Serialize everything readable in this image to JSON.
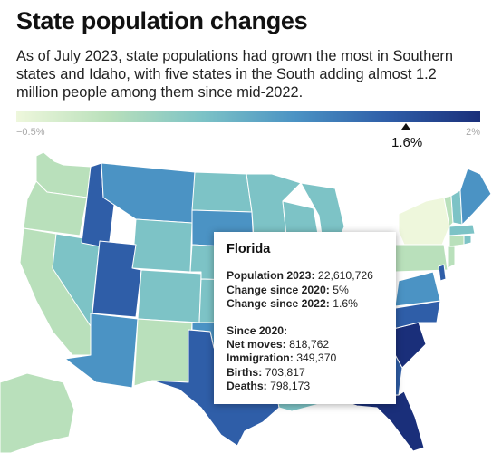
{
  "title": "State population changes",
  "subtitle": "As of July 2023, state populations had grown the most in Southern states and Idaho, with five states in the South adding almost 1.2 million people among them since mid-2022.",
  "legend": {
    "min_label": "−0.5%",
    "max_label": "2%",
    "marker_value": "1.6%",
    "marker_fraction": 0.84,
    "colors": [
      "#eef7dc",
      "#b9e0bb",
      "#7dc3c6",
      "#4b93c4",
      "#2f5ea8",
      "#1a2f7a"
    ]
  },
  "tooltip": {
    "state": "Florida",
    "population_2023_label": "Population 2023",
    "population_2023": "22,610,726",
    "change_2020_label": "Change since 2020",
    "change_2020": "5%",
    "change_2022_label": "Change since 2022",
    "change_2022": "1.6%",
    "since_label": "Since 2020:",
    "net_moves_label": "Net moves",
    "net_moves": "818,762",
    "immigration_label": "Immigration",
    "immigration": "349,370",
    "births_label": "Births",
    "births": "703,817",
    "deaths_label": "Deaths",
    "deaths": "798,173"
  },
  "map_colors": {
    "lowest": "#eef7dc",
    "low": "#b9e0bb",
    "mid": "#7dc3c6",
    "mid_high": "#4b93c4",
    "high": "#2f5ea8",
    "highest": "#1a2f7a",
    "border": "#ffffff"
  }
}
